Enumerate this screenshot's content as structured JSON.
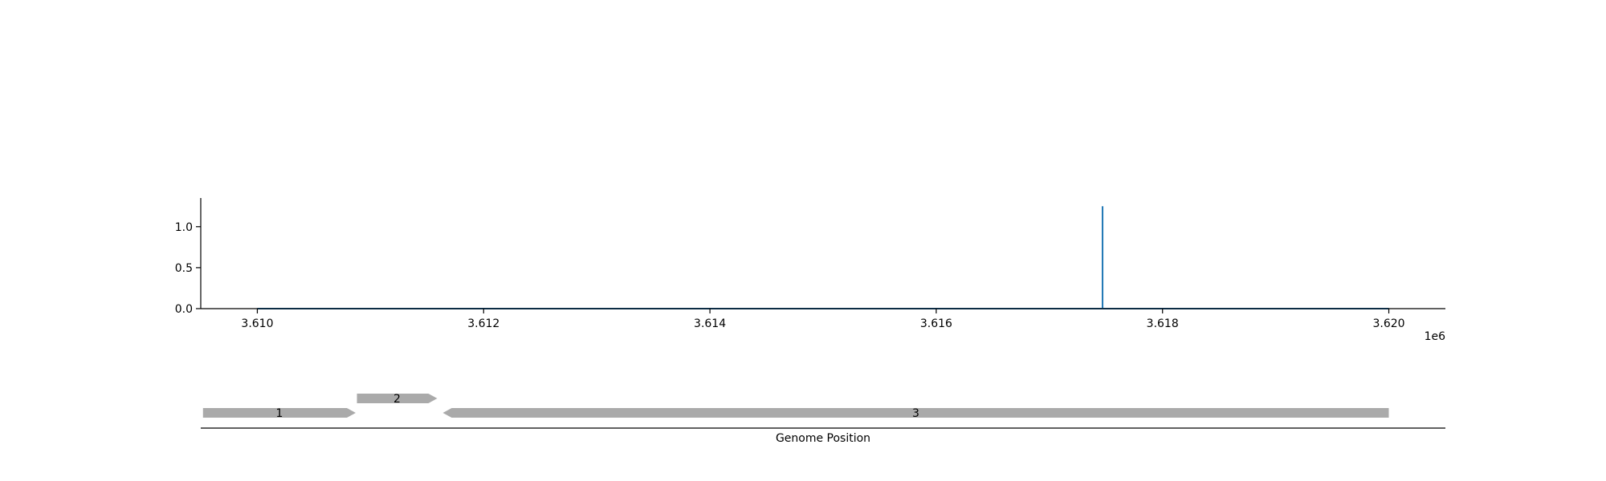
{
  "chart_data": [
    {
      "type": "line",
      "title": "",
      "xlabel": "",
      "ylabel": "",
      "x_offset_label": "1e6",
      "xlim": [
        3609500,
        3620500
      ],
      "ylim": [
        0,
        1.35
      ],
      "xticks": [
        3610000,
        3612000,
        3614000,
        3616000,
        3618000,
        3620000
      ],
      "xtick_labels": [
        "3.610",
        "3.612",
        "3.614",
        "3.616",
        "3.618",
        "3.620"
      ],
      "yticks": [
        0.0,
        0.5,
        1.0
      ],
      "ytick_labels": [
        "0.0",
        "0.5",
        "1.0"
      ],
      "grid": false,
      "series": [
        {
          "color": "#1f77b4",
          "x": [
            3610000,
            3617470,
            3617470,
            3617470,
            3620000
          ],
          "y": [
            0,
            0,
            1.25,
            0,
            0
          ]
        }
      ]
    },
    {
      "type": "gene_track",
      "xlabel": "Genome Position",
      "xlim": [
        3609500,
        3620500
      ],
      "color": "#aaaaaa",
      "features": [
        {
          "label": "1",
          "start": 3609520,
          "end": 3610870,
          "strand": "+",
          "row": 0
        },
        {
          "label": "2",
          "start": 3610880,
          "end": 3611590,
          "strand": "+",
          "row": 1
        },
        {
          "label": "3",
          "start": 3611640,
          "end": 3620000,
          "strand": "-",
          "row": 0
        }
      ]
    }
  ]
}
